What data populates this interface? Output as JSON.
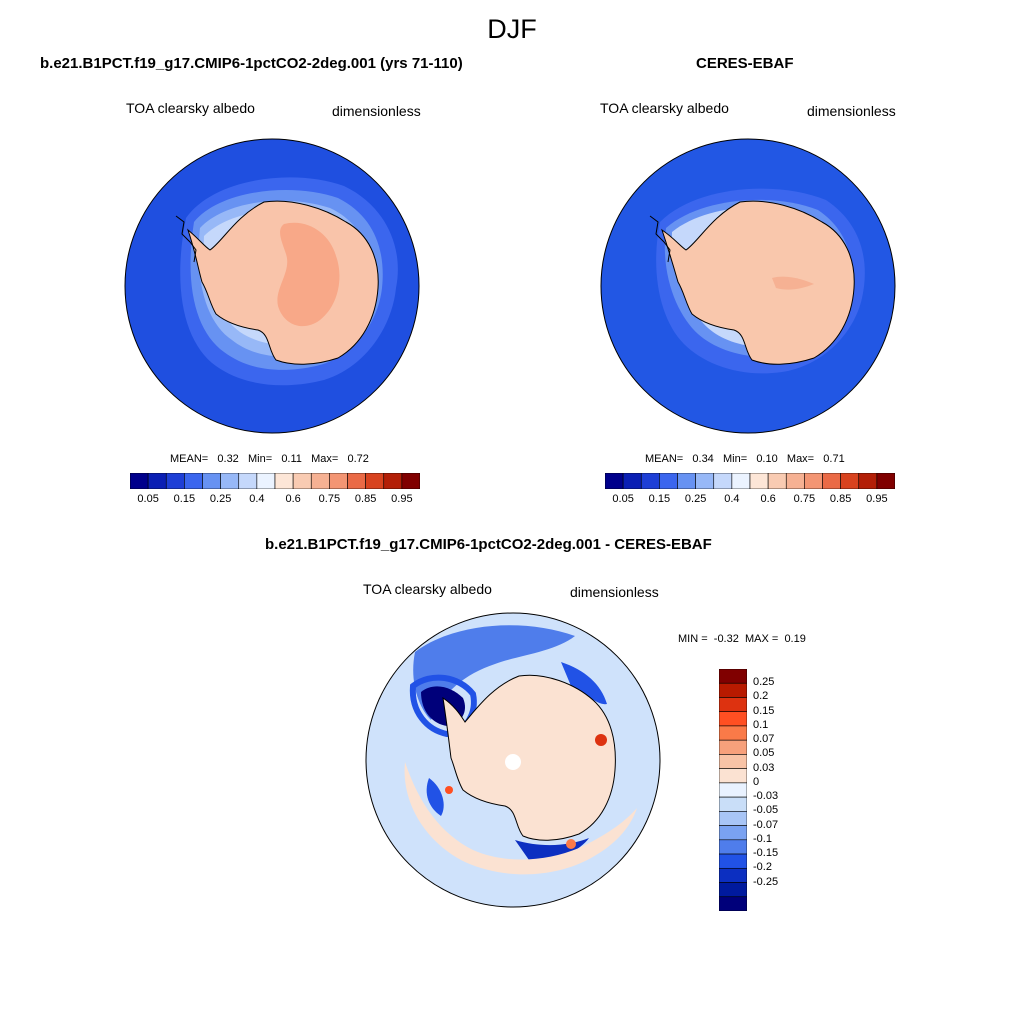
{
  "title": "DJF",
  "colors": {
    "albedo_levels": [
      "#00008b",
      "#0a1fb4",
      "#1e3fd6",
      "#3b66ee",
      "#6792f2",
      "#97b8f7",
      "#c5d8fb",
      "#ebf3ff",
      "#fde6d7",
      "#f9cbb2",
      "#f6b193",
      "#f39573",
      "#ea6a46",
      "#d8431f",
      "#b31f07",
      "#800000"
    ],
    "diff_levels": [
      "#800000",
      "#b81a00",
      "#dd3210",
      "#ff4f22",
      "#fa7a48",
      "#f7a07b",
      "#f8c3a6",
      "#fbe2d2",
      "#e9f2ff",
      "#c9def8",
      "#a8c5f6",
      "#7aa2f1",
      "#4f7deb",
      "#2152e6",
      "#0c2fc1",
      "#001a9e",
      "#00007a"
    ],
    "ocean_model": "#1f4fe0",
    "ocean_obs": "#2257e4",
    "ice_model": "#f9c4aa",
    "ice_model_core": "#f8a888",
    "ice_obs": "#f9c7ac",
    "diff_background": "#cfe2fb"
  },
  "panels": [
    {
      "title": "b.e21.B1PCT.f19_g17.CMIP6-1pctCO2-2deg.001 (yrs 71-110)",
      "var_label": "TOA clearsky albedo",
      "units": "dimensionless",
      "stats": {
        "mean_label": "MEAN=",
        "mean": "0.32",
        "min_label": "Min=",
        "min": "0.11",
        "max_label": "Max=",
        "max": "0.72"
      },
      "colorbar_ticks": [
        "0.05",
        "0.15",
        "0.25",
        "0.4",
        "0.6",
        "0.75",
        "0.85",
        "0.95"
      ]
    },
    {
      "title": "CERES-EBAF",
      "var_label": "TOA clearsky albedo",
      "units": "dimensionless",
      "stats": {
        "mean_label": "MEAN=",
        "mean": "0.34",
        "min_label": "Min=",
        "min": "0.10",
        "max_label": "Max=",
        "max": "0.71"
      },
      "colorbar_ticks": [
        "0.05",
        "0.15",
        "0.25",
        "0.4",
        "0.6",
        "0.75",
        "0.85",
        "0.95"
      ]
    }
  ],
  "difference": {
    "title": "b.e21.B1PCT.f19_g17.CMIP6-1pctCO2-2deg.001 - CERES-EBAF",
    "var_label": "TOA clearsky albedo",
    "units": "dimensionless",
    "stats": {
      "min_label": "MIN =",
      "min": "-0.32",
      "max_label": "MAX =",
      "max": "0.19"
    },
    "colorbar_ticks": [
      "0.25",
      "0.2",
      "0.15",
      "0.1",
      "0.07",
      "0.05",
      "0.03",
      "0",
      "-0.03",
      "-0.05",
      "-0.07",
      "-0.1",
      "-0.15",
      "-0.2",
      "-0.25"
    ]
  }
}
